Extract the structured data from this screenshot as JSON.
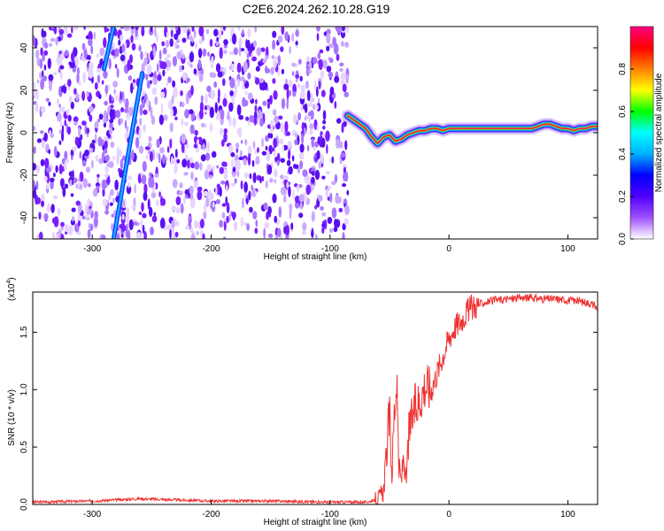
{
  "title": "C2E6.2024.262.10.28.G19",
  "chart_data": [
    {
      "type": "heatmap",
      "xlabel": "Height of straight line (km)",
      "ylabel": "Frequency (Hz)",
      "xlim": [
        -350,
        125
      ],
      "ylim": [
        -50,
        50
      ],
      "x_ticks": [
        -300,
        -200,
        -100,
        0,
        100
      ],
      "y_ticks": [
        -40,
        -20,
        0,
        20,
        40
      ],
      "colorbar": {
        "label": "Normalized spectral amplitude",
        "range": [
          0,
          1
        ],
        "ticks": [
          "0.0",
          "0.2",
          "0.4",
          "0.6",
          "0.8"
        ],
        "colormap": [
          "#ffffff",
          "#a050ff",
          "#5000ff",
          "#0000ff",
          "#00b0ff",
          "#00ffff",
          "#00ff00",
          "#ffff00",
          "#ff8000",
          "#ff0000",
          "#ff0080"
        ]
      },
      "noise_region_x": [
        -350,
        -85
      ],
      "noise_color": "#7a1fff",
      "drift_lines": [
        {
          "x_start": -290,
          "y_start": 30,
          "x_end": -282,
          "y_end": 50
        },
        {
          "x_start": -282,
          "y_start": -50,
          "x_end": -258,
          "y_end": 28
        }
      ],
      "signal_trace": {
        "x": [
          -85,
          -80,
          -75,
          -70,
          -65,
          -60,
          -55,
          -50,
          -45,
          -40,
          -35,
          -30,
          -25,
          -20,
          -15,
          -10,
          -5,
          0,
          10,
          20,
          30,
          40,
          50,
          60,
          70,
          75,
          80,
          85,
          90,
          95,
          100,
          105,
          110,
          115,
          120,
          125
        ],
        "y": [
          8,
          6,
          4,
          2,
          -2,
          -5,
          -2,
          -1,
          -4,
          -3,
          -1,
          0,
          1,
          1,
          2,
          2,
          1,
          2,
          2,
          2,
          2,
          2,
          2,
          2,
          2,
          3,
          4,
          4,
          3,
          2,
          2,
          1,
          2,
          2,
          3,
          3
        ]
      }
    },
    {
      "type": "line",
      "xlabel": "Height of straight line (km)",
      "ylabel": "SNR (10 * v/v)",
      "y_multiplier": "(x10",
      "y_exponent": "4",
      "y_multiplier_close": ")",
      "xlim": [
        -350,
        125
      ],
      "ylim": [
        0,
        1.85
      ],
      "x_ticks": [
        -300,
        -200,
        -100,
        0,
        100
      ],
      "y_ticks": [
        "0.0",
        "0.5",
        "1.0",
        "1.5"
      ],
      "color": "#ee3333",
      "series": [
        {
          "x": [
            -350,
            -300,
            -260,
            -200,
            -150,
            -100,
            -70,
            -60,
            -55,
            -52,
            -50,
            -48,
            -46,
            -44,
            -42,
            -40,
            -38,
            -36,
            -34,
            -30,
            -25,
            -20,
            -15,
            -10,
            -5,
            0,
            5,
            10,
            15,
            20,
            25,
            30,
            40,
            50,
            60,
            70,
            80,
            90,
            100,
            110,
            120,
            125
          ],
          "y": [
            0.02,
            0.03,
            0.05,
            0.03,
            0.03,
            0.02,
            0.02,
            0.04,
            0.12,
            0.5,
            0.8,
            0.25,
            0.8,
            1.05,
            0.3,
            0.2,
            0.45,
            0.15,
            0.6,
            0.8,
            0.9,
            1.05,
            1.0,
            1.15,
            1.3,
            1.45,
            1.55,
            1.6,
            1.68,
            1.72,
            1.74,
            1.76,
            1.78,
            1.79,
            1.8,
            1.8,
            1.79,
            1.79,
            1.78,
            1.77,
            1.75,
            1.7
          ]
        }
      ]
    }
  ]
}
